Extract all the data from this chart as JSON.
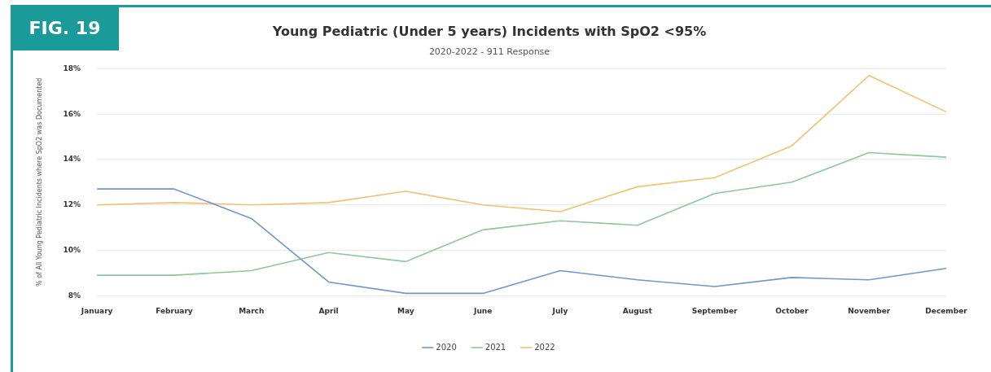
{
  "chart_data": {
    "type": "line",
    "title": "Young Pediatric (Under 5 years) Incidents with SpO2 <95%",
    "subtitle": "2020-2022 - 911 Response",
    "ylabel": "% of All Young Pediatric Incidents where SpO2 was Documented",
    "annotations": [
      "FIG. 19"
    ],
    "categories": [
      "January",
      "February",
      "March",
      "April",
      "May",
      "June",
      "July",
      "August",
      "September",
      "October",
      "November",
      "December"
    ],
    "series": [
      {
        "name": "2020",
        "color": "#6f96d0",
        "values": [
          12.7,
          12.7,
          11.4,
          8.6,
          8.1,
          8.1,
          9.1,
          8.7,
          8.4,
          8.8,
          8.7,
          9.2
        ]
      },
      {
        "name": "2021",
        "color": "#8cc89a",
        "values": [
          8.9,
          8.9,
          9.1,
          9.9,
          9.5,
          10.9,
          11.3,
          11.1,
          12.5,
          13.0,
          14.3,
          14.1
        ]
      },
      {
        "name": "2022",
        "color": "#f5c070",
        "values": [
          12.0,
          12.1,
          12.0,
          12.1,
          12.6,
          12.0,
          11.7,
          12.8,
          13.2,
          14.6,
          17.7,
          16.1
        ]
      }
    ],
    "ylim": [
      8,
      18
    ],
    "yticks": [
      {
        "value": 8,
        "label": "8%"
      },
      {
        "value": 10,
        "label": "10%"
      },
      {
        "value": 12,
        "label": "12%"
      },
      {
        "value": 14,
        "label": "14%"
      },
      {
        "value": 16,
        "label": "16%"
      },
      {
        "value": 18,
        "label": "18%"
      }
    ],
    "grid": "y",
    "legend": "bottom",
    "marker": "none",
    "line_style": "solid"
  }
}
